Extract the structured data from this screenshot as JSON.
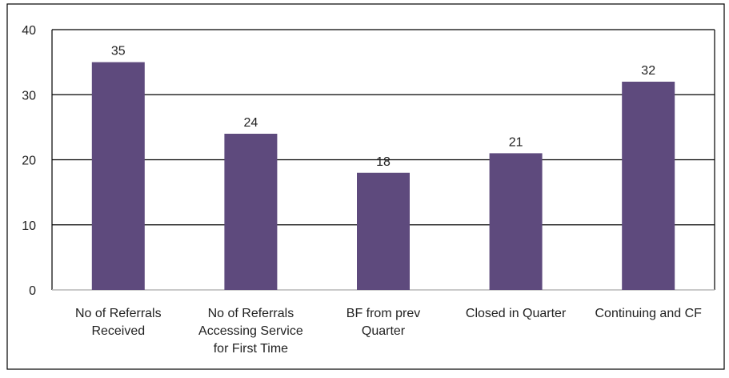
{
  "colors": {
    "bar": "#5e4a7d",
    "gridline": "#000000",
    "frame": "#000000",
    "text": "#222222",
    "background": "#ffffff"
  },
  "chart_data": {
    "type": "bar",
    "title": "",
    "xlabel": "",
    "ylabel": "",
    "categories": [
      [
        "No of Referrals",
        "Received"
      ],
      [
        "No of Referrals",
        "Accessing Service",
        "for First Time"
      ],
      [
        "BF from prev",
        "Quarter"
      ],
      [
        "Closed in Quarter"
      ],
      [
        "Continuing and CF"
      ]
    ],
    "values": [
      35,
      24,
      18,
      21,
      32
    ],
    "data_labels": [
      "35",
      "24",
      "18",
      "21",
      "32"
    ],
    "ylim": [
      0,
      40
    ],
    "yticks": [
      0,
      10,
      20,
      30,
      40
    ],
    "grid": true,
    "legend": "none"
  }
}
